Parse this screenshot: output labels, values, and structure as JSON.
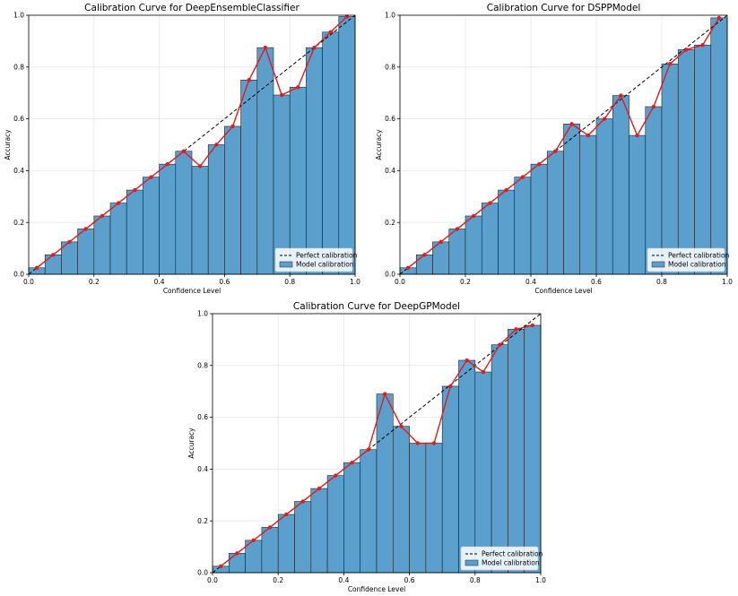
{
  "chart_data": [
    {
      "type": "bar",
      "title": "Calibration Curve for DeepEnsembleClassifier",
      "xlabel": "Confidence Level",
      "ylabel": "Accuracy",
      "xlim": [
        0,
        1
      ],
      "ylim": [
        0,
        1
      ],
      "xticks": [
        "0.0",
        "0.2",
        "0.4",
        "0.6",
        "0.8",
        "1.0"
      ],
      "yticks": [
        "0.0",
        "0.2",
        "0.4",
        "0.6",
        "0.8",
        "1.0"
      ],
      "grid": true,
      "legend": {
        "placement": "lower-right",
        "entries": [
          "Perfect calibration",
          "Model calibration"
        ]
      },
      "bin_centers": [
        0.025,
        0.075,
        0.125,
        0.175,
        0.225,
        0.275,
        0.325,
        0.375,
        0.425,
        0.475,
        0.525,
        0.575,
        0.625,
        0.675,
        0.725,
        0.775,
        0.825,
        0.875,
        0.925,
        0.975
      ],
      "values": [
        0.025,
        0.075,
        0.125,
        0.175,
        0.225,
        0.275,
        0.325,
        0.375,
        0.425,
        0.475,
        0.417,
        0.5,
        0.571,
        0.75,
        0.875,
        0.692,
        0.722,
        0.875,
        0.935,
        0.995
      ]
    },
    {
      "type": "bar",
      "title": "Calibration Curve for DSPPModel",
      "xlabel": "Confidence Level",
      "ylabel": "Accuracy",
      "xlim": [
        0,
        1
      ],
      "ylim": [
        0,
        1
      ],
      "xticks": [
        "0.0",
        "0.2",
        "0.4",
        "0.6",
        "0.8",
        "1.0"
      ],
      "yticks": [
        "0.0",
        "0.2",
        "0.4",
        "0.6",
        "0.8",
        "1.0"
      ],
      "grid": true,
      "legend": {
        "placement": "lower-right",
        "entries": [
          "Perfect calibration",
          "Model calibration"
        ]
      },
      "bin_centers": [
        0.025,
        0.075,
        0.125,
        0.175,
        0.225,
        0.275,
        0.325,
        0.375,
        0.425,
        0.475,
        0.525,
        0.575,
        0.625,
        0.675,
        0.725,
        0.775,
        0.825,
        0.875,
        0.925,
        0.975
      ],
      "values": [
        0.025,
        0.075,
        0.125,
        0.175,
        0.225,
        0.275,
        0.325,
        0.375,
        0.425,
        0.475,
        0.58,
        0.536,
        0.6,
        0.69,
        0.536,
        0.647,
        0.812,
        0.867,
        0.885,
        0.99
      ]
    },
    {
      "type": "bar",
      "title": "Calibration Curve for DeepGPModel",
      "xlabel": "Confidence Level",
      "ylabel": "Accuracy",
      "xlim": [
        0,
        1
      ],
      "ylim": [
        0,
        1
      ],
      "xticks": [
        "0.0",
        "0.2",
        "0.4",
        "0.6",
        "0.8",
        "1.0"
      ],
      "yticks": [
        "0.0",
        "0.2",
        "0.4",
        "0.6",
        "0.8",
        "1.0"
      ],
      "grid": true,
      "legend": {
        "placement": "lower-right",
        "entries": [
          "Perfect calibration",
          "Model calibration"
        ]
      },
      "bin_centers": [
        0.025,
        0.075,
        0.125,
        0.175,
        0.225,
        0.275,
        0.325,
        0.375,
        0.425,
        0.475,
        0.525,
        0.575,
        0.625,
        0.675,
        0.725,
        0.775,
        0.825,
        0.875,
        0.925,
        0.975
      ],
      "values": [
        0.025,
        0.075,
        0.125,
        0.175,
        0.225,
        0.275,
        0.325,
        0.375,
        0.425,
        0.475,
        0.69,
        0.565,
        0.5,
        0.5,
        0.72,
        0.82,
        0.775,
        0.88,
        0.94,
        0.955
      ]
    }
  ],
  "colors": {
    "bar_fill": "#5b9fcc",
    "bar_edge": "#222222",
    "line": "#e41a1c",
    "perfect": "#000000",
    "grid": "#e6e6e6",
    "axis": "#000000"
  }
}
